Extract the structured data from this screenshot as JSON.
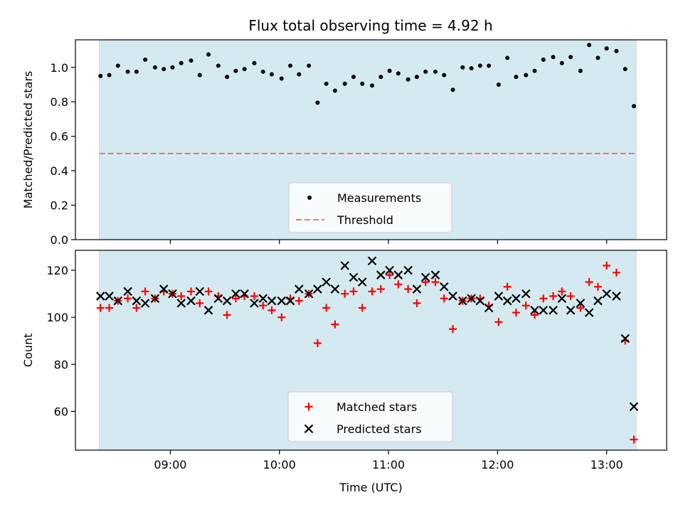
{
  "title": "Flux total observing time = 4.92 h",
  "colors": {
    "span": "#d4eaf0",
    "measurement": "#000000",
    "threshold": "#f07070",
    "matched": "#ff0000",
    "predicted": "#000000"
  },
  "chart_data": [
    {
      "type": "scatter",
      "ylabel": "Matched/Predicted stars",
      "xlabel": "",
      "xlim": [
        8.13,
        13.55
      ],
      "ylim": [
        0.0,
        1.16
      ],
      "yticks": [
        0.0,
        0.2,
        0.4,
        0.6,
        0.8,
        1.0
      ],
      "ytick_labels": [
        "0.0",
        "0.2",
        "0.4",
        "0.6",
        "0.8",
        "1.0"
      ],
      "observing_span": [
        8.35,
        13.27
      ],
      "threshold": 0.5,
      "legend_position": "lower-center",
      "legend": [
        {
          "key": "measurement",
          "label": "Measurements",
          "marker": "dot"
        },
        {
          "key": "threshold",
          "label": "Threshold",
          "marker": "dashed-line"
        }
      ],
      "series": [
        {
          "key": "measurement",
          "marker": "dot",
          "points": [
            [
              8.36,
              0.95
            ],
            [
              8.44,
              0.955
            ],
            [
              8.52,
              1.01
            ],
            [
              8.61,
              0.975
            ],
            [
              8.69,
              0.975
            ],
            [
              8.77,
              1.045
            ],
            [
              8.86,
              1.0
            ],
            [
              8.94,
              0.99
            ],
            [
              9.02,
              1.0
            ],
            [
              9.1,
              1.025
            ],
            [
              9.19,
              1.04
            ],
            [
              9.27,
              0.955
            ],
            [
              9.35,
              1.075
            ],
            [
              9.44,
              1.01
            ],
            [
              9.52,
              0.945
            ],
            [
              9.6,
              0.98
            ],
            [
              9.68,
              0.99
            ],
            [
              9.77,
              1.025
            ],
            [
              9.85,
              0.975
            ],
            [
              9.93,
              0.96
            ],
            [
              10.02,
              0.935
            ],
            [
              10.1,
              1.01
            ],
            [
              10.18,
              0.96
            ],
            [
              10.27,
              1.01
            ],
            [
              10.35,
              0.795
            ],
            [
              10.43,
              0.905
            ],
            [
              10.51,
              0.865
            ],
            [
              10.6,
              0.905
            ],
            [
              10.68,
              0.945
            ],
            [
              10.76,
              0.905
            ],
            [
              10.85,
              0.895
            ],
            [
              10.93,
              0.945
            ],
            [
              11.01,
              0.98
            ],
            [
              11.09,
              0.965
            ],
            [
              11.18,
              0.93
            ],
            [
              11.26,
              0.945
            ],
            [
              11.34,
              0.975
            ],
            [
              11.43,
              0.975
            ],
            [
              11.51,
              0.955
            ],
            [
              11.59,
              0.87
            ],
            [
              11.68,
              1.0
            ],
            [
              11.76,
              0.995
            ],
            [
              11.84,
              1.01
            ],
            [
              11.92,
              1.01
            ],
            [
              12.01,
              0.9
            ],
            [
              12.09,
              1.055
            ],
            [
              12.17,
              0.945
            ],
            [
              12.26,
              0.955
            ],
            [
              12.34,
              0.98
            ],
            [
              12.42,
              1.045
            ],
            [
              12.51,
              1.06
            ],
            [
              12.59,
              1.025
            ],
            [
              12.67,
              1.06
            ],
            [
              12.76,
              0.98
            ],
            [
              12.84,
              1.13
            ],
            [
              12.92,
              1.055
            ],
            [
              13.0,
              1.11
            ],
            [
              13.09,
              1.095
            ],
            [
              13.17,
              0.99
            ],
            [
              13.25,
              0.775
            ]
          ]
        }
      ]
    },
    {
      "type": "scatter",
      "ylabel": "Count",
      "xlabel": "Time (UTC)",
      "xlim": [
        8.13,
        13.55
      ],
      "ylim": [
        43.5,
        128.5
      ],
      "yticks": [
        60,
        80,
        100,
        120
      ],
      "ytick_labels": [
        "60",
        "80",
        "100",
        "120"
      ],
      "xticks": [
        9,
        10,
        11,
        12,
        13
      ],
      "xtick_labels": [
        "09:00",
        "10:00",
        "11:00",
        "12:00",
        "13:00"
      ],
      "observing_span": [
        8.35,
        13.27
      ],
      "legend_position": "lower-center",
      "legend": [
        {
          "key": "matched",
          "label": "Matched stars",
          "marker": "plus"
        },
        {
          "key": "predicted",
          "label": "Predicted stars",
          "marker": "x"
        }
      ],
      "series": [
        {
          "key": "matched",
          "marker": "plus",
          "points": [
            [
              8.36,
              104
            ],
            [
              8.44,
              104
            ],
            [
              8.52,
              107
            ],
            [
              8.61,
              108
            ],
            [
              8.69,
              104
            ],
            [
              8.77,
              111
            ],
            [
              8.86,
              108
            ],
            [
              8.94,
              111
            ],
            [
              9.02,
              110
            ],
            [
              9.1,
              109
            ],
            [
              9.19,
              111
            ],
            [
              9.27,
              106
            ],
            [
              9.35,
              111
            ],
            [
              9.44,
              109
            ],
            [
              9.52,
              101
            ],
            [
              9.6,
              108
            ],
            [
              9.68,
              109
            ],
            [
              9.77,
              109
            ],
            [
              9.85,
              105
            ],
            [
              9.93,
              103
            ],
            [
              10.02,
              100
            ],
            [
              10.1,
              108
            ],
            [
              10.18,
              107
            ],
            [
              10.27,
              110
            ],
            [
              10.35,
              89
            ],
            [
              10.43,
              104
            ],
            [
              10.51,
              97
            ],
            [
              10.6,
              110
            ],
            [
              10.68,
              111
            ],
            [
              10.76,
              104
            ],
            [
              10.85,
              111
            ],
            [
              10.93,
              112
            ],
            [
              11.01,
              118
            ],
            [
              11.09,
              114
            ],
            [
              11.18,
              112
            ],
            [
              11.26,
              106
            ],
            [
              11.34,
              115
            ],
            [
              11.43,
              115
            ],
            [
              11.51,
              108
            ],
            [
              11.59,
              95
            ],
            [
              11.68,
              107
            ],
            [
              11.76,
              108
            ],
            [
              11.84,
              108
            ],
            [
              11.92,
              105
            ],
            [
              12.01,
              98
            ],
            [
              12.09,
              113
            ],
            [
              12.17,
              102
            ],
            [
              12.26,
              105
            ],
            [
              12.34,
              101
            ],
            [
              12.42,
              108
            ],
            [
              12.51,
              109
            ],
            [
              12.59,
              111
            ],
            [
              12.67,
              109
            ],
            [
              12.76,
              104
            ],
            [
              12.84,
              115
            ],
            [
              12.92,
              113
            ],
            [
              13.0,
              122
            ],
            [
              13.09,
              119
            ],
            [
              13.17,
              90
            ],
            [
              13.25,
              48
            ]
          ]
        },
        {
          "key": "predicted",
          "marker": "x",
          "points": [
            [
              8.36,
              109
            ],
            [
              8.44,
              109
            ],
            [
              8.52,
              107
            ],
            [
              8.61,
              111
            ],
            [
              8.69,
              107
            ],
            [
              8.77,
              106
            ],
            [
              8.86,
              108
            ],
            [
              8.94,
              112
            ],
            [
              9.02,
              110
            ],
            [
              9.1,
              106
            ],
            [
              9.19,
              107
            ],
            [
              9.27,
              111
            ],
            [
              9.35,
              103
            ],
            [
              9.44,
              108
            ],
            [
              9.52,
              107
            ],
            [
              9.6,
              110
            ],
            [
              9.68,
              110
            ],
            [
              9.77,
              106
            ],
            [
              9.85,
              108
            ],
            [
              9.93,
              107
            ],
            [
              10.02,
              107
            ],
            [
              10.1,
              107
            ],
            [
              10.18,
              112
            ],
            [
              10.27,
              110
            ],
            [
              10.35,
              112
            ],
            [
              10.43,
              115
            ],
            [
              10.51,
              112
            ],
            [
              10.6,
              122
            ],
            [
              10.68,
              117
            ],
            [
              10.76,
              115
            ],
            [
              10.85,
              124
            ],
            [
              10.93,
              118
            ],
            [
              11.01,
              120
            ],
            [
              11.09,
              118
            ],
            [
              11.18,
              120
            ],
            [
              11.26,
              112
            ],
            [
              11.34,
              117
            ],
            [
              11.43,
              118
            ],
            [
              11.51,
              113
            ],
            [
              11.59,
              109
            ],
            [
              11.68,
              107
            ],
            [
              11.76,
              108
            ],
            [
              11.84,
              107
            ],
            [
              11.92,
              104
            ],
            [
              12.01,
              109
            ],
            [
              12.09,
              107
            ],
            [
              12.17,
              108
            ],
            [
              12.26,
              110
            ],
            [
              12.34,
              103
            ],
            [
              12.42,
              103
            ],
            [
              12.51,
              103
            ],
            [
              12.59,
              108
            ],
            [
              12.67,
              103
            ],
            [
              12.76,
              106
            ],
            [
              12.84,
              102
            ],
            [
              12.92,
              107
            ],
            [
              13.0,
              110
            ],
            [
              13.09,
              109
            ],
            [
              13.17,
              91
            ],
            [
              13.25,
              62
            ]
          ]
        }
      ]
    }
  ]
}
